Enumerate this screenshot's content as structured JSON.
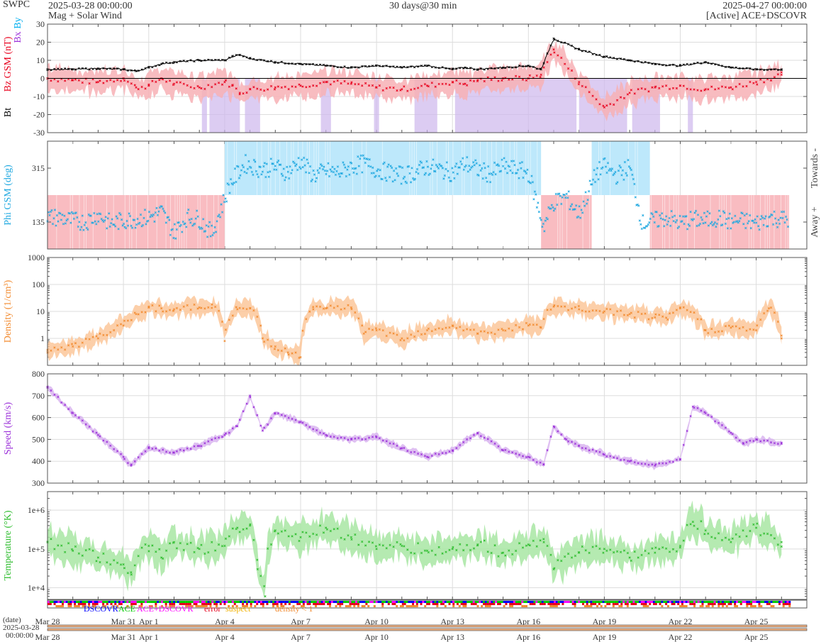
{
  "header": {
    "brand": "SWPC",
    "start_time": "2025-03-28 00:00:00",
    "subtitle": "Mag + Solar Wind",
    "span": "30 days@30 min",
    "end_time": "2025-04-27 00:00:00",
    "source": "[Active] ACE+DSCOVR"
  },
  "colors": {
    "bt": "#000000",
    "bz": "#e8001c",
    "by": "#00aeef",
    "bx": "#9b30d9",
    "phi": "#1fa8e0",
    "phi_towards_fill": "#bde8fb",
    "phi_away_fill": "#f9bcc1",
    "density": "#f28a2e",
    "density_fill": "#fbc79a",
    "speed": "#9b30d9",
    "speed_fill": "#d9b5f0",
    "temperature": "#2ebd2e",
    "temperature_fill": "#a8e6a3",
    "dscovr": "#0000ff",
    "ace": "#00cc00",
    "ace_dscovr": "#ff00ff",
    "error": "#e8001c",
    "suspect": "#f2b200",
    "density_lt_1": "#f28a2e",
    "grid": "#dddddd",
    "frame": "#555555"
  },
  "chart_data": [
    {
      "type": "line",
      "panel": "mag",
      "ylabel_parts": [
        "Bt",
        "Bz GSM (nT)",
        "Bx",
        "By"
      ],
      "ylim": [
        -30,
        30
      ],
      "yticks": [
        "30",
        "20",
        "10",
        "0",
        "-10",
        "-20",
        "-30"
      ],
      "grid": true,
      "series": [
        {
          "name": "Bt",
          "x_day": [
            0,
            1,
            2,
            3,
            3.5,
            4,
            4.5,
            5,
            6,
            7,
            7.3,
            7.6,
            8,
            9,
            10,
            11,
            12,
            13,
            14,
            15,
            16,
            16.5,
            17,
            18,
            19,
            19.5,
            20,
            21,
            22,
            23,
            24,
            25,
            26,
            27,
            28,
            29
          ],
          "values": [
            5,
            5,
            5.5,
            5,
            4,
            6,
            8,
            9,
            10,
            10,
            12,
            13,
            11,
            9,
            8,
            7,
            6,
            7,
            6,
            7,
            5,
            6,
            5,
            6,
            7,
            5,
            22,
            16,
            12,
            10,
            8,
            7,
            9,
            6,
            5,
            5
          ]
        },
        {
          "name": "Bz GSM",
          "x_day": [
            0,
            1,
            2,
            3,
            3.5,
            4,
            4.5,
            5,
            6,
            7,
            7.3,
            7.6,
            8,
            9,
            10,
            11,
            12,
            13,
            14,
            15,
            16,
            16.5,
            17,
            18,
            19,
            19.5,
            20,
            21,
            22,
            23,
            24,
            25,
            26,
            27,
            28,
            29
          ],
          "values": [
            0,
            -1,
            -2,
            0,
            -5,
            -4,
            0,
            -3,
            -5,
            -2,
            -4,
            -8,
            -6,
            -5,
            -4,
            -2,
            -3,
            -5,
            -6,
            -4,
            -2,
            -3,
            -1,
            0,
            0,
            2,
            16,
            -2,
            -16,
            -8,
            -5,
            -4,
            -6,
            -5,
            -2,
            2
          ]
        }
      ],
      "bx_gaps_days": [
        6.1,
        6.3,
        6.4,
        7.6,
        7.8,
        8.4,
        10.8,
        11.2,
        12.9,
        13.1,
        14.5,
        15.4,
        16.1,
        20.9,
        21,
        22.9,
        23.1,
        24.2,
        25.3,
        25.5
      ]
    },
    {
      "type": "scatter",
      "panel": "phi",
      "ylabel": "Phi GSM (deg)",
      "ylim": [
        45,
        405
      ],
      "yticks": [
        "315",
        "135"
      ],
      "right_labels": [
        "Towards -",
        "Away +"
      ],
      "sectors": [
        {
          "start_day": 0,
          "end_day": 7,
          "sector": "away"
        },
        {
          "start_day": 7,
          "end_day": 19.5,
          "sector": "towards"
        },
        {
          "start_day": 19.5,
          "end_day": 21.5,
          "sector": "away"
        },
        {
          "start_day": 21.5,
          "end_day": 23.8,
          "sector": "towards"
        },
        {
          "start_day": 23.8,
          "end_day": 29.3,
          "sector": "away"
        }
      ],
      "series": [
        {
          "name": "Phi",
          "x_day": [
            0.5,
            1,
            1.5,
            2,
            2.5,
            3,
            3.5,
            4,
            4.5,
            5,
            5.5,
            6,
            6.5,
            7.2,
            7.8,
            8.5,
            9,
            9.5,
            10,
            10.5,
            11,
            11.5,
            12,
            12.5,
            13,
            13.5,
            14,
            14.5,
            15,
            15.5,
            16,
            16.5,
            17,
            17.5,
            18,
            18.5,
            19,
            19.6,
            20,
            20.5,
            21,
            21.7,
            22,
            22.5,
            23,
            23.5,
            24,
            24.5,
            25,
            25.5,
            26,
            26.5,
            27,
            27.5,
            28,
            28.5,
            29
          ],
          "values": [
            150,
            140,
            135,
            160,
            130,
            140,
            145,
            150,
            170,
            100,
            150,
            145,
            95,
            260,
            330,
            310,
            320,
            300,
            340,
            290,
            305,
            300,
            320,
            330,
            310,
            300,
            290,
            300,
            320,
            310,
            300,
            330,
            310,
            295,
            320,
            310,
            300,
            120,
            200,
            220,
            160,
            300,
            320,
            290,
            320,
            130,
            140,
            150,
            130,
            145,
            140,
            150,
            135,
            140,
            130,
            150,
            145
          ]
        }
      ]
    },
    {
      "type": "area",
      "panel": "density",
      "ylabel": "Density (1/cm³)",
      "ylim": [
        0.1,
        1000
      ],
      "yticks": [
        "1000",
        "100",
        "10",
        "1"
      ],
      "scale": "log",
      "series": [
        {
          "name": "Density",
          "x_day": [
            0,
            1,
            2,
            3,
            3.5,
            4,
            4.5,
            5,
            6,
            6.5,
            7,
            7.5,
            8,
            8.5,
            9,
            9.5,
            10,
            10.5,
            11,
            12,
            12.5,
            13,
            14,
            15,
            16,
            17,
            18,
            19,
            19.5,
            20,
            21,
            22,
            23,
            24,
            24.5,
            25,
            26,
            27,
            28,
            28.5,
            29
          ],
          "values": [
            0.3,
            0.5,
            1,
            3,
            8,
            14,
            13,
            12,
            14,
            18,
            0.8,
            12,
            13,
            1,
            0.5,
            0.3,
            0.2,
            12,
            13,
            14,
            1.5,
            2,
            1,
            2,
            3,
            1.5,
            2,
            3,
            2.5,
            15,
            12,
            10,
            8,
            6,
            5,
            14,
            2,
            2.5,
            2,
            13,
            1
          ]
        }
      ]
    },
    {
      "type": "area",
      "panel": "speed",
      "ylabel": "Speed (km/s)",
      "ylim": [
        300,
        800
      ],
      "yticks": [
        "800",
        "700",
        "600",
        "500",
        "400",
        "300"
      ],
      "series": [
        {
          "name": "Speed",
          "x_day": [
            0,
            1,
            2,
            3,
            3.3,
            4,
            5,
            6,
            7,
            7.5,
            8,
            8.5,
            9,
            10,
            11,
            12,
            13,
            14,
            15,
            16,
            17,
            18,
            19,
            19.6,
            20,
            20.5,
            21,
            22,
            23,
            24,
            25,
            25.5,
            26,
            27,
            27.5,
            28,
            29
          ],
          "values": [
            740,
            620,
            520,
            420,
            380,
            460,
            440,
            470,
            520,
            560,
            700,
            540,
            620,
            580,
            520,
            500,
            510,
            460,
            420,
            450,
            530,
            450,
            420,
            385,
            560,
            500,
            470,
            430,
            400,
            380,
            410,
            650,
            620,
            530,
            480,
            500,
            480
          ]
        }
      ]
    },
    {
      "type": "area",
      "panel": "temperature",
      "ylabel": "Temperature (°K)",
      "ylim": [
        5000,
        3000000
      ],
      "yticks": [
        "1e+6",
        "1e+5",
        "1e+4"
      ],
      "scale": "log",
      "series": [
        {
          "name": "Temperature",
          "x_day": [
            0,
            1,
            2,
            3,
            3.3,
            4,
            4.5,
            5,
            6,
            7,
            7.5,
            8,
            8.3,
            8.6,
            9,
            10,
            11,
            12,
            13,
            14,
            15,
            16,
            17,
            18,
            19,
            19.6,
            20,
            21,
            22,
            23,
            24,
            25,
            25.5,
            26,
            27,
            28,
            29
          ],
          "values": [
            150000,
            90000,
            60000,
            40000,
            25000,
            120000,
            60000,
            150000,
            100000,
            120000,
            350000,
            400000,
            30000,
            6000,
            300000,
            200000,
            350000,
            200000,
            100000,
            120000,
            90000,
            100000,
            130000,
            80000,
            130000,
            180000,
            30000,
            80000,
            100000,
            60000,
            80000,
            120000,
            500000,
            300000,
            150000,
            350000,
            150000
          ]
        }
      ]
    }
  ],
  "source_strip": {
    "legend": [
      "DSCOVR",
      "ACE",
      "ACE+DSCOVR",
      "error",
      "suspect",
      "density < 1"
    ]
  },
  "time_axis": {
    "date_label": "(date)",
    "start_label_date": "2025-03-28",
    "start_label_time": "00:00:00",
    "ticks": [
      {
        "day": 0,
        "label": "Mar 28"
      },
      {
        "day": 3,
        "label": "Mar 31"
      },
      {
        "day": 4,
        "label": "Apr 1"
      },
      {
        "day": 7,
        "label": "Apr 4"
      },
      {
        "day": 10,
        "label": "Apr 7"
      },
      {
        "day": 13,
        "label": "Apr 10"
      },
      {
        "day": 16,
        "label": "Apr 13"
      },
      {
        "day": 19,
        "label": "Apr 16"
      },
      {
        "day": 22,
        "label": "Apr 19"
      },
      {
        "day": 25,
        "label": "Apr 22"
      },
      {
        "day": 28,
        "label": "Apr 25"
      }
    ]
  }
}
